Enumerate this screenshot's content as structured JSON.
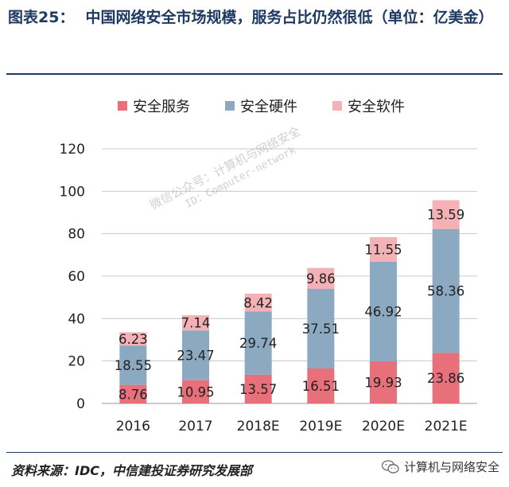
{
  "title": {
    "label": "图表25：",
    "text": "中国网络安全市场规模，服务占比仍然很低（单位：亿美金）"
  },
  "chart_data": {
    "type": "bar",
    "stacked": true,
    "categories": [
      "2016",
      "2017",
      "2018E",
      "2019E",
      "2020E",
      "2021E"
    ],
    "series": [
      {
        "name": "安全服务",
        "color": "#e8707a",
        "values": [
          8.76,
          10.95,
          13.57,
          16.51,
          19.93,
          23.86
        ]
      },
      {
        "name": "安全硬件",
        "color": "#8ba9c1",
        "values": [
          18.55,
          23.47,
          29.74,
          37.51,
          46.92,
          58.36
        ]
      },
      {
        "name": "安全软件",
        "color": "#f4b2b6",
        "values": [
          6.23,
          7.14,
          8.42,
          9.86,
          11.55,
          13.59
        ]
      }
    ],
    "ylim": [
      0,
      120
    ],
    "yticks": [
      0,
      20,
      40,
      60,
      80,
      100,
      120
    ],
    "grid": true,
    "legend_position": "top"
  },
  "footer": {
    "source": "资料来源：IDC，中信建投证券研究发展部",
    "account": "计算机与网络安全"
  },
  "watermark": {
    "line1": "微信公众号：计算机与网络安全",
    "line2": "ID：Computer-network"
  }
}
